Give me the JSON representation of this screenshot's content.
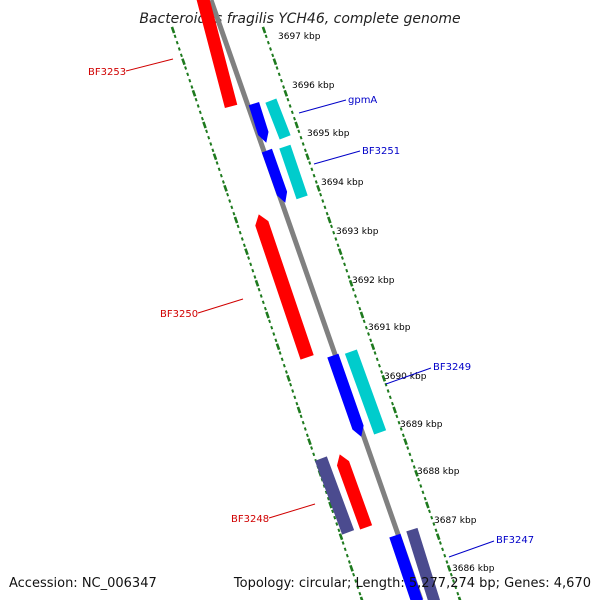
{
  "title": "Bacteroides fragilis YCH46, complete genome",
  "footer": {
    "accession": "Accession: NC_006347",
    "topology": "Topology: circular; Length: 5,277,274 bp; Genes: 4,670"
  },
  "colors": {
    "backbone": "#808080",
    "forward_cds": "#ff0000",
    "reverse_cds": "#0000ff",
    "rna": "#00cccc",
    "other": "#4b4b8f",
    "ruler": "#1e7a1e",
    "forward_label": "#d00000",
    "reverse_label": "#0000c8"
  },
  "kbp_labels": [
    "3697 kbp",
    "3696 kbp",
    "3695 kbp",
    "3694 kbp",
    "3693 kbp",
    "3692 kbp",
    "3691 kbp",
    "3690 kbp",
    "3689 kbp",
    "3688 kbp",
    "3687 kbp",
    "3686 kbp"
  ],
  "gene_labels": {
    "bf3253": "BF3253",
    "gpma": "gpmA",
    "bf3251": "BF3251",
    "bf3250": "BF3250",
    "bf3249": "BF3249",
    "bf3248": "BF3248",
    "bf3247": "BF3247"
  }
}
